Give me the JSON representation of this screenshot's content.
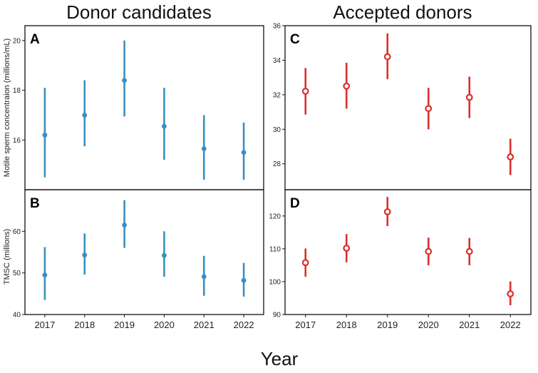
{
  "figure": {
    "left_title": "Donor candidates",
    "right_title": "Accepted donors",
    "xlabel": "Year",
    "ylabel_top": "Motile sperm concentraion (millions/mL)",
    "ylabel_bottom": "TMSC (millions)"
  },
  "chart_data": [
    {
      "type": "errorbar",
      "panel": "A",
      "x": [
        "2017",
        "2018",
        "2019",
        "2020",
        "2021",
        "2022"
      ],
      "values": [
        16.2,
        17.0,
        18.4,
        16.55,
        15.65,
        15.5
      ],
      "lower": [
        14.5,
        15.75,
        16.95,
        15.2,
        14.4,
        14.4
      ],
      "upper": [
        18.1,
        18.4,
        20.0,
        18.1,
        17.0,
        16.7
      ],
      "yticks": [
        16,
        18,
        20
      ],
      "ylim": [
        14.0,
        20.6
      ],
      "color": "#3a8fc0",
      "marker": "filled"
    },
    {
      "type": "errorbar",
      "panel": "B",
      "x": [
        "2017",
        "2018",
        "2019",
        "2020",
        "2021",
        "2022"
      ],
      "values": [
        49.5,
        54.3,
        61.5,
        54.2,
        49.1,
        48.2
      ],
      "lower": [
        43.5,
        49.6,
        56.0,
        49.1,
        44.5,
        44.3
      ],
      "upper": [
        56.2,
        59.5,
        67.5,
        60.0,
        54.1,
        52.4
      ],
      "yticks": [
        40,
        50,
        60
      ],
      "ylim": [
        40.0,
        70.0
      ],
      "color": "#3a8fc0",
      "marker": "filled"
    },
    {
      "type": "errorbar",
      "panel": "C",
      "x": [
        "2017",
        "2018",
        "2019",
        "2020",
        "2021",
        "2022"
      ],
      "values": [
        32.2,
        32.5,
        34.2,
        31.2,
        31.85,
        28.4
      ],
      "lower": [
        30.85,
        31.2,
        32.9,
        30.0,
        30.65,
        27.35
      ],
      "upper": [
        33.55,
        33.85,
        35.55,
        32.4,
        33.05,
        29.45
      ],
      "yticks": [
        28,
        30,
        32,
        34,
        36
      ],
      "ylim": [
        26.5,
        36.0
      ],
      "color": "#d8302b",
      "marker": "open"
    },
    {
      "type": "errorbar",
      "panel": "D",
      "x": [
        "2017",
        "2018",
        "2019",
        "2020",
        "2021",
        "2022"
      ],
      "values": [
        105.8,
        110.2,
        121.3,
        109.2,
        109.2,
        96.3
      ],
      "lower": [
        101.5,
        105.9,
        116.9,
        105.0,
        105.0,
        92.8
      ],
      "upper": [
        110.1,
        114.5,
        125.8,
        113.4,
        113.3,
        100.1
      ],
      "yticks": [
        90,
        100,
        110,
        120
      ],
      "ylim": [
        90.0,
        128.0
      ],
      "color": "#d8302b",
      "marker": "open"
    }
  ]
}
